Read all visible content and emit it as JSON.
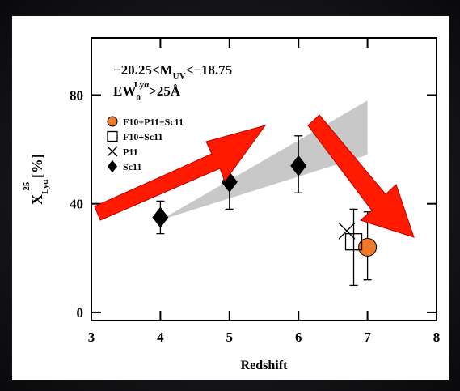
{
  "chart_data": {
    "type": "scatter",
    "xlabel": "Redshift",
    "ylabel": [
      "X",
      "Lyα",
      "25",
      " [%]"
    ],
    "annotation_lines": [
      [
        "−20.25<M",
        "UV",
        "<−18.75"
      ],
      [
        "EW",
        "0",
        "Lyα",
        ">25Å"
      ]
    ],
    "xlim": [
      3,
      8
    ],
    "xticks": [
      3,
      4,
      5,
      6,
      7,
      8
    ],
    "ylim": [
      -3,
      101
    ],
    "yticks": [
      0,
      40,
      80
    ],
    "shade": {
      "color": "#c8c8c8",
      "x": [
        4,
        7
      ],
      "low": [
        34,
        58
      ],
      "high": [
        34,
        78
      ]
    },
    "series": [
      {
        "name": "F10+P11+Sc11",
        "marker": "circle",
        "color": "#f07828",
        "x": [
          7.0
        ],
        "values": [
          24
        ],
        "yerr_low": [
          12
        ],
        "yerr_high": [
          13
        ]
      },
      {
        "name": "F10+Sc11",
        "marker": "square",
        "color": "#000000",
        "x": [
          6.8
        ],
        "values": [
          26
        ],
        "yerr_low": [
          16
        ],
        "yerr_high": [
          12
        ]
      },
      {
        "name": "P11",
        "marker": "cross",
        "color": "#000000",
        "x": [
          6.7
        ],
        "values": [
          30
        ],
        "yerr_low": [],
        "yerr_high": []
      },
      {
        "name": "Sc11",
        "marker": "diamond",
        "color": "#000000",
        "x": [
          4,
          5,
          6
        ],
        "values": [
          35,
          48,
          54
        ],
        "yerr_low": [
          6,
          10,
          10
        ],
        "yerr_high": [
          6,
          10,
          11
        ]
      }
    ]
  }
}
